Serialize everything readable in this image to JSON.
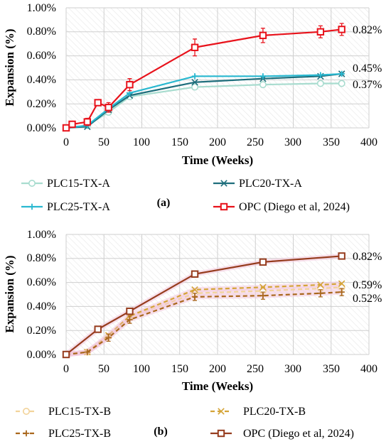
{
  "chart_data": [
    {
      "type": "line",
      "panel_label": "(a)",
      "xlabel": "Time (Weeks)",
      "ylabel": "Expansion (%)",
      "xlim": [
        0,
        400
      ],
      "ylim": [
        0,
        1.0
      ],
      "x_ticks": [
        "0",
        "50",
        "100",
        "150",
        "200",
        "250",
        "300",
        "350",
        "400"
      ],
      "y_ticks": [
        "0.00%",
        "0.20%",
        "0.40%",
        "0.60%",
        "0.80%",
        "1.00%"
      ],
      "grid": true,
      "series": [
        {
          "name": "PLC15-TX-A",
          "color": "#a8dccf",
          "marker": "circle",
          "dash": false,
          "x": [
            0,
            28,
            56,
            84,
            170,
            260,
            336,
            364
          ],
          "y": [
            0.0,
            0.02,
            0.13,
            0.26,
            0.34,
            0.36,
            0.37,
            0.37
          ],
          "err": []
        },
        {
          "name": "PLC20-TX-A",
          "color": "#1e6e7c",
          "marker": "x",
          "dash": false,
          "x": [
            0,
            28,
            56,
            84,
            170,
            260,
            336,
            364
          ],
          "y": [
            0.0,
            0.01,
            0.15,
            0.27,
            0.38,
            0.41,
            0.43,
            0.45
          ],
          "err": []
        },
        {
          "name": "PLC25-TX-A",
          "color": "#29b8d0",
          "marker": "plus",
          "dash": false,
          "x": [
            0,
            28,
            56,
            84,
            170,
            260,
            336,
            364
          ],
          "y": [
            0.0,
            0.02,
            0.16,
            0.29,
            0.43,
            0.43,
            0.44,
            0.45
          ],
          "err": []
        },
        {
          "name": "OPC (Diego et al, 2024)",
          "color": "#e8121b",
          "marker": "square",
          "dash": false,
          "x": [
            0,
            8,
            28,
            42,
            56,
            84,
            170,
            260,
            336,
            364
          ],
          "y": [
            0.0,
            0.03,
            0.05,
            0.21,
            0.17,
            0.36,
            0.67,
            0.77,
            0.8,
            0.82
          ],
          "err": [
            0.0,
            0.02,
            0.03,
            0.02,
            0.04,
            0.05,
            0.07,
            0.06,
            0.05,
            0.05
          ]
        }
      ],
      "value_labels": [
        "0.82%",
        "0.45%",
        "0.37%"
      ]
    },
    {
      "type": "line",
      "panel_label": "(b)",
      "xlabel": "Time (Weeks)",
      "ylabel": "Expansion (%)",
      "xlim": [
        0,
        400
      ],
      "ylim": [
        0,
        1.0
      ],
      "x_ticks": [
        "0",
        "50",
        "100",
        "150",
        "200",
        "250",
        "300",
        "350",
        "400"
      ],
      "y_ticks": [
        "0.00%",
        "0.20%",
        "0.40%",
        "0.60%",
        "0.80%",
        "1.00%"
      ],
      "grid": true,
      "series": [
        {
          "name": "PLC15-TX-B",
          "color": "#f2d39a",
          "marker": "circle",
          "dash": true,
          "x": [
            0,
            28,
            56,
            84,
            170,
            260,
            336,
            364
          ],
          "y": [
            0.0,
            0.02,
            0.15,
            0.31,
            0.51,
            0.53,
            0.55,
            0.56
          ],
          "err": []
        },
        {
          "name": "PLC20-TX-B",
          "color": "#d4a437",
          "marker": "x",
          "dash": true,
          "x": [
            0,
            28,
            56,
            84,
            170,
            260,
            336,
            364
          ],
          "y": [
            0.0,
            0.02,
            0.16,
            0.32,
            0.54,
            0.56,
            0.58,
            0.59
          ],
          "err": []
        },
        {
          "name": "PLC25-TX-B",
          "color": "#a9671c",
          "marker": "plus",
          "dash": true,
          "x": [
            0,
            28,
            56,
            84,
            170,
            260,
            336,
            364
          ],
          "y": [
            0.0,
            0.02,
            0.14,
            0.29,
            0.48,
            0.49,
            0.51,
            0.52
          ],
          "err": [
            0,
            0,
            0.03,
            0.03,
            0.03,
            0.03,
            0.03,
            0.03
          ]
        },
        {
          "name": "OPC (Diego et al, 2024)",
          "color": "#963c1e",
          "marker": "square",
          "dash": false,
          "x": [
            0,
            42,
            84,
            170,
            260,
            364
          ],
          "y": [
            0.0,
            0.21,
            0.36,
            0.67,
            0.77,
            0.82
          ],
          "err": []
        }
      ],
      "value_labels": [
        "0.82%",
        "0.59%",
        "0.52%"
      ]
    }
  ]
}
